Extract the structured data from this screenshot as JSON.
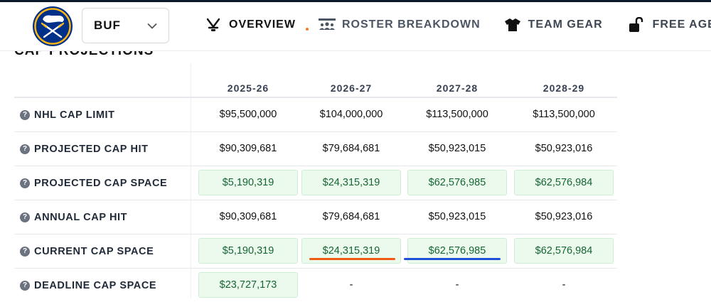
{
  "header": {
    "team_abbr": "BUF",
    "nav": [
      {
        "label": "OVERVIEW",
        "icon": "hockey-sticks-icon"
      },
      {
        "label": "ROSTER BREAKDOWN",
        "icon": "roster-group-icon"
      },
      {
        "label": "TEAM GEAR",
        "icon": "jersey-icon"
      },
      {
        "label": "FREE AGENT",
        "icon": "unlock-icon"
      }
    ]
  },
  "section": {
    "title": "CAP PROJECTIONS"
  },
  "table": {
    "columns": [
      "2025-26",
      "2026-27",
      "2027-28",
      "2028-29"
    ],
    "rows": [
      {
        "label": "NHL CAP LIMIT",
        "values": [
          "$95,500,000",
          "$104,000,000",
          "$113,500,000",
          "$113,500,000"
        ],
        "highlight": false
      },
      {
        "label": "PROJECTED CAP HIT",
        "values": [
          "$90,309,681",
          "$79,684,681",
          "$50,923,015",
          "$50,923,016"
        ],
        "highlight": false
      },
      {
        "label": "PROJECTED CAP SPACE",
        "values": [
          "$5,190,319",
          "$24,315,319",
          "$62,576,985",
          "$62,576,984"
        ],
        "highlight": true
      },
      {
        "label": "ANNUAL CAP HIT",
        "values": [
          "$90,309,681",
          "$79,684,681",
          "$50,923,015",
          "$50,923,016"
        ],
        "highlight": false
      },
      {
        "label": "CURRENT CAP SPACE",
        "values": [
          "$5,190,319",
          "$24,315,319",
          "$62,576,985",
          "$62,576,984"
        ],
        "highlight": true
      },
      {
        "label": "DEADLINE CAP SPACE",
        "values": [
          "$23,727,173",
          "-",
          "-",
          "-"
        ],
        "highlight": true
      }
    ]
  },
  "colors": {
    "space_bg": "#ecfaee",
    "space_text": "#166534",
    "accent_orange": "#ef5b12",
    "accent_blue": "#1f4fd6",
    "team_navy": "#003087",
    "team_gold": "#fcb514"
  }
}
